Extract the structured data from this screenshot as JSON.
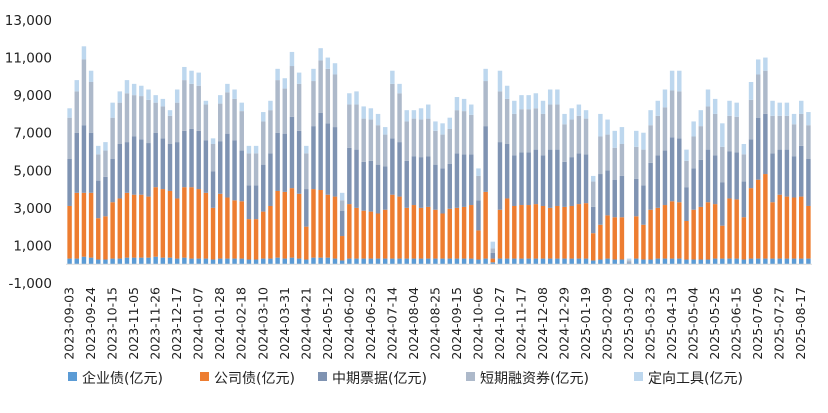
{
  "chart_data": {
    "type": "bar",
    "stacked": true,
    "title": "",
    "xlabel": "",
    "ylabel": "",
    "ylim": [
      -1000,
      13000
    ],
    "yticks": [
      -1000,
      1000,
      3000,
      5000,
      7000,
      9000,
      11000,
      13000
    ],
    "ytick_labels": [
      "-1,000",
      "1,000",
      "3,000",
      "5,000",
      "7,000",
      "9,000",
      "11,000",
      "13,000"
    ],
    "grid": false,
    "legend_position": "bottom",
    "tick_labels": [
      "2023-09-03",
      "2023-09-24",
      "2023-10-15",
      "2023-11-05",
      "2023-11-26",
      "2023-12-17",
      "2024-01-07",
      "2024-01-28",
      "2024-02-18",
      "2024-03-10",
      "2024-03-31",
      "2024-04-21",
      "2024-05-12",
      "2024-06-02",
      "2024-06-23",
      "2024-07-14",
      "2024-08-04",
      "2024-08-25",
      "2024-09-15",
      "2024-10-06",
      "2024-10-27",
      "2024-11-17",
      "2024-12-08",
      "2024-12-29",
      "2025-01-19",
      "2025-02-09",
      "2025-03-02",
      "2025-03-23",
      "2025-04-13",
      "2025-05-04",
      "2025-05-25",
      "2025-06-15",
      "2025-07-06",
      "2025-07-27",
      "2025-08-17"
    ],
    "tick_every": 3,
    "series_colors": [
      "#5b9bd5",
      "#ed7d31",
      "#7f93b2",
      "#adb9ca",
      "#bdd7ee"
    ],
    "series_names": [
      "企业债(亿元)",
      "公司债(亿元)",
      "中期票据(亿元)",
      "短期融资券(亿元)",
      "定向工具(亿元)"
    ],
    "totals": [
      8300,
      9800,
      11600,
      10300,
      6300,
      6500,
      8600,
      9200,
      9800,
      9600,
      9500,
      9300,
      9000,
      8800,
      8200,
      9300,
      10500,
      10300,
      10200,
      8700,
      6700,
      9000,
      9600,
      9300,
      8600,
      6300,
      6300,
      8100,
      8700,
      10400,
      9900,
      11300,
      10200,
      6300,
      10400,
      11500,
      11000,
      10700,
      3800,
      9100,
      9200,
      8400,
      8300,
      8000,
      7300,
      10300,
      9600,
      8200,
      8200,
      8300,
      8500,
      7600,
      7500,
      7800,
      8900,
      8800,
      8500,
      5100,
      10400,
      1200,
      10300,
      9500,
      8700,
      9000,
      9000,
      9100,
      8700,
      9300,
      9300,
      8000,
      8300,
      8500,
      8200,
      4700,
      8000,
      7700,
      7100,
      7300,
      300,
      7100,
      7000,
      8200,
      8700,
      9300,
      10300,
      10300,
      6100,
      7600,
      8200,
      9300,
      8800,
      7500,
      8700,
      8600,
      6400,
      9700,
      10900,
      11000,
      8700,
      8600,
      8600,
      8000,
      8700,
      8100
    ],
    "series": [
      {
        "name": "企业债(亿元)",
        "values": [
          300,
          300,
          400,
          350,
          250,
          250,
          300,
          300,
          350,
          350,
          350,
          350,
          400,
          350,
          350,
          300,
          350,
          300,
          300,
          300,
          250,
          300,
          300,
          300,
          300,
          250,
          250,
          300,
          300,
          350,
          300,
          350,
          300,
          250,
          350,
          350,
          350,
          300,
          200,
          300,
          300,
          300,
          300,
          300,
          300,
          300,
          300,
          300,
          300,
          300,
          300,
          300,
          300,
          300,
          300,
          300,
          300,
          250,
          300,
          100,
          300,
          300,
          300,
          300,
          300,
          300,
          300,
          300,
          300,
          300,
          300,
          300,
          300,
          200,
          250,
          300,
          250,
          250,
          50,
          300,
          250,
          250,
          300,
          300,
          300,
          300,
          250,
          250,
          250,
          250,
          300,
          300,
          300,
          300,
          250,
          300,
          300,
          300,
          300,
          300,
          300,
          300,
          300,
          300
        ]
      },
      {
        "name": "公司债(亿元)",
        "values": [
          2800,
          3500,
          3400,
          3450,
          2200,
          2300,
          3000,
          3200,
          3450,
          3350,
          3350,
          3250,
          3700,
          3650,
          3550,
          3200,
          3750,
          3800,
          3700,
          3500,
          2750,
          3450,
          3250,
          3100,
          3050,
          2150,
          2150,
          2500,
          2800,
          3550,
          3550,
          3700,
          3450,
          1750,
          3650,
          3600,
          3350,
          3300,
          1300,
          2900,
          2700,
          2550,
          2500,
          2400,
          2600,
          3400,
          3300,
          2700,
          2850,
          2700,
          2750,
          2600,
          2400,
          2650,
          2700,
          2750,
          2850,
          1550,
          3550,
          200,
          2600,
          3200,
          2800,
          2850,
          2850,
          2900,
          2800,
          2700,
          2800,
          2750,
          2800,
          2900,
          2950,
          1450,
          1850,
          2300,
          2250,
          2250,
          0,
          2250,
          1850,
          2650,
          2700,
          2850,
          3050,
          3000,
          2050,
          2650,
          2800,
          3050,
          2900,
          1750,
          3200,
          3150,
          2250,
          3750,
          4200,
          4500,
          3000,
          3400,
          3300,
          3250,
          3300,
          2800
        ]
      },
      {
        "name": "中期票据(亿元)",
        "values": [
          2500,
          3200,
          3600,
          3200,
          2000,
          2100,
          2300,
          2900,
          2700,
          3100,
          2950,
          2850,
          2900,
          2700,
          2500,
          3000,
          3000,
          3100,
          3100,
          2800,
          1950,
          2800,
          3400,
          3200,
          2700,
          1800,
          1800,
          2500,
          2800,
          3100,
          3100,
          3800,
          3350,
          2000,
          3350,
          4100,
          3800,
          3700,
          1350,
          3000,
          3100,
          2600,
          2700,
          2600,
          2300,
          3000,
          2900,
          2500,
          2600,
          2700,
          2700,
          2400,
          2400,
          2400,
          2900,
          2800,
          2700,
          1600,
          3500,
          300,
          3600,
          2900,
          2700,
          2800,
          2800,
          2900,
          2700,
          3100,
          3000,
          2400,
          2600,
          2700,
          2600,
          1400,
          2700,
          2400,
          2000,
          2200,
          50,
          2000,
          2100,
          2500,
          2800,
          2900,
          3400,
          3400,
          1800,
          2200,
          2500,
          2800,
          2600,
          2300,
          2500,
          2500,
          1900,
          2600,
          3300,
          3200,
          2600,
          2400,
          2500,
          2200,
          2700,
          2500
        ]
      },
      {
        "name": "短期融资券(亿元)",
        "values": [
          2200,
          2200,
          3500,
          2700,
          1400,
          1400,
          2200,
          2200,
          2600,
          2200,
          2300,
          2300,
          1600,
          1700,
          1500,
          2100,
          2700,
          2400,
          2400,
          1900,
          1450,
          2000,
          2200,
          2200,
          2100,
          1700,
          1700,
          2300,
          2300,
          2800,
          2400,
          2700,
          2500,
          1900,
          2400,
          2800,
          2900,
          2800,
          550,
          2300,
          2400,
          2300,
          2200,
          2100,
          1700,
          2900,
          2600,
          2100,
          2000,
          2000,
          2000,
          1800,
          1800,
          1850,
          2300,
          2300,
          2100,
          1300,
          2400,
          250,
          2700,
          2400,
          2200,
          2300,
          2300,
          2200,
          2200,
          2400,
          2400,
          2000,
          2000,
          2000,
          1900,
          1350,
          2000,
          1900,
          1700,
          1700,
          100,
          1700,
          1900,
          2000,
          2100,
          2300,
          2500,
          2500,
          1400,
          1700,
          1800,
          2300,
          2200,
          1900,
          1900,
          1900,
          1450,
          2100,
          2300,
          2300,
          2000,
          1800,
          1800,
          1700,
          1700,
          1800
        ]
      },
      {
        "name": "定向工具(亿元)",
        "values": [
          500,
          600,
          700,
          600,
          450,
          450,
          800,
          600,
          700,
          600,
          550,
          550,
          400,
          400,
          300,
          700,
          700,
          700,
          700,
          200,
          300,
          450,
          450,
          500,
          450,
          400,
          400,
          500,
          500,
          600,
          550,
          750,
          600,
          400,
          650,
          650,
          600,
          600,
          400,
          600,
          700,
          650,
          600,
          600,
          400,
          700,
          500,
          600,
          450,
          600,
          750,
          500,
          600,
          600,
          700,
          650,
          550,
          400,
          650,
          350,
          1100,
          700,
          700,
          750,
          750,
          800,
          700,
          800,
          800,
          550,
          600,
          600,
          450,
          300,
          1200,
          800,
          900,
          900,
          100,
          850,
          900,
          800,
          800,
          950,
          1050,
          1100,
          600,
          800,
          850,
          900,
          800,
          1250,
          800,
          750,
          550,
          950,
          800,
          700,
          800,
          700,
          700,
          550,
          700,
          700
        ]
      }
    ]
  },
  "legend": {
    "items": [
      {
        "label": "企业债(亿元)",
        "color": "#5b9bd5"
      },
      {
        "label": "公司债(亿元)",
        "color": "#ed7d31"
      },
      {
        "label": "中期票据(亿元)",
        "color": "#7f93b2"
      },
      {
        "label": "短期融资券(亿元)",
        "color": "#adb9ca"
      },
      {
        "label": "定向工具(亿元)",
        "color": "#bdd7ee"
      }
    ]
  }
}
